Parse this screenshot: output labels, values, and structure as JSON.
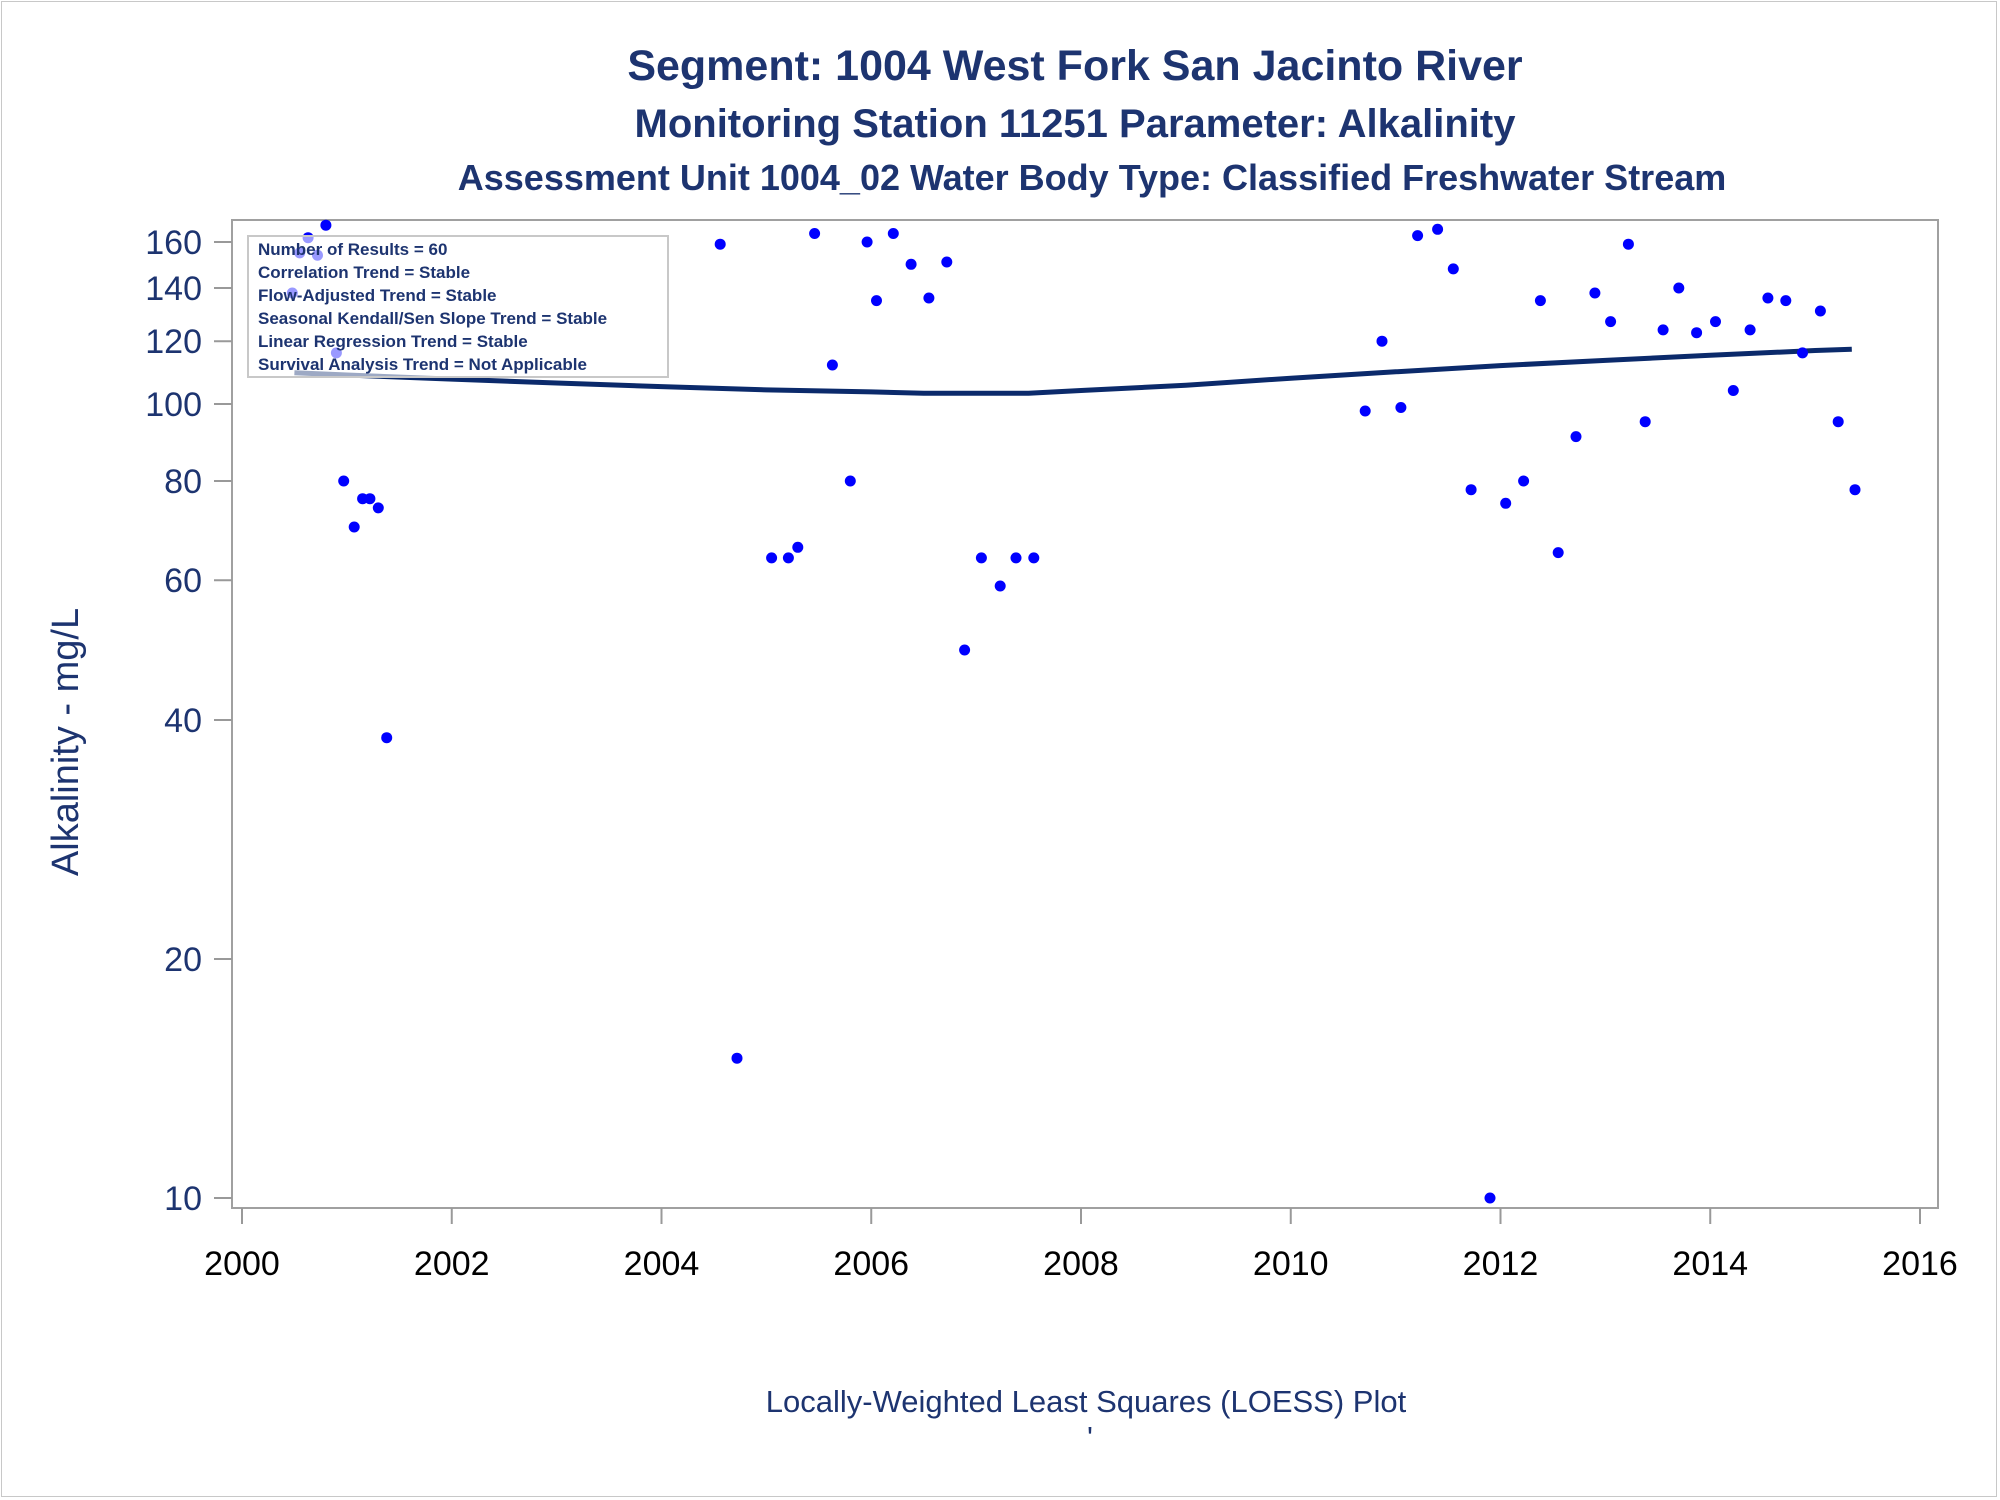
{
  "titles": {
    "line1": "Segment: 1004  West Fork San Jacinto River",
    "line2": "Monitoring Station 11251 Parameter: Alkalinity",
    "line3": "Assessment Unit 1004_02   Water Body Type: Classified Freshwater Stream"
  },
  "inset": {
    "lines": [
      "Number of Results = 60",
      "Correlation Trend = Stable",
      "Flow-Adjusted Trend = Stable",
      "Seasonal Kendall/Sen Slope Trend = Stable",
      "Linear Regression Trend = Stable",
      "Survival Analysis Trend = Not Applicable"
    ]
  },
  "footnote": "Locally-Weighted Least Squares (LOESS) Plot",
  "footnote_mark": "'",
  "colors": {
    "text": "#1d3470",
    "points": "#0000ff",
    "loess": "#0b2a6b",
    "axis": "#999999"
  },
  "chart_data": {
    "type": "scatter",
    "ylabel": "Alkalinity - mg/L",
    "xlabel": "",
    "yscale": "log",
    "xlim": [
      2000,
      2016
    ],
    "ylim": [
      9.8,
      175
    ],
    "xticks": [
      2000,
      2002,
      2004,
      2006,
      2008,
      2010,
      2012,
      2014,
      2016
    ],
    "yticks": [
      10,
      20,
      40,
      60,
      80,
      100,
      120,
      140,
      160
    ],
    "grid": false,
    "series": [
      {
        "type": "scatter",
        "points": [
          [
            2000.48,
            138
          ],
          [
            2000.55,
            155
          ],
          [
            2000.63,
            162
          ],
          [
            2000.72,
            154
          ],
          [
            2000.8,
            168
          ],
          [
            2000.9,
            116
          ],
          [
            2000.97,
            80
          ],
          [
            2001.07,
            70
          ],
          [
            2001.15,
            76
          ],
          [
            2001.22,
            76
          ],
          [
            2001.3,
            74
          ],
          [
            2001.38,
            38
          ],
          [
            2004.56,
            159
          ],
          [
            2004.72,
            15
          ],
          [
            2005.05,
            64
          ],
          [
            2005.21,
            64
          ],
          [
            2005.3,
            66
          ],
          [
            2005.46,
            164
          ],
          [
            2005.63,
            112
          ],
          [
            2005.8,
            80
          ],
          [
            2005.96,
            160
          ],
          [
            2006.05,
            135
          ],
          [
            2006.21,
            164
          ],
          [
            2006.38,
            150
          ],
          [
            2006.55,
            136
          ],
          [
            2006.72,
            151
          ],
          [
            2006.89,
            49
          ],
          [
            2007.05,
            64
          ],
          [
            2007.23,
            59
          ],
          [
            2007.38,
            64
          ],
          [
            2007.55,
            64
          ],
          [
            2010.71,
            98
          ],
          [
            2010.87,
            120
          ],
          [
            2011.05,
            99
          ],
          [
            2011.21,
            163
          ],
          [
            2011.4,
            166
          ],
          [
            2011.55,
            148
          ],
          [
            2011.72,
            78
          ],
          [
            2011.9,
            10
          ],
          [
            2012.05,
            75
          ],
          [
            2012.22,
            80
          ],
          [
            2012.38,
            135
          ],
          [
            2012.55,
            65
          ],
          [
            2012.72,
            91
          ],
          [
            2012.9,
            138
          ],
          [
            2013.05,
            127
          ],
          [
            2013.22,
            159
          ],
          [
            2013.38,
            95
          ],
          [
            2013.55,
            124
          ],
          [
            2013.7,
            140
          ],
          [
            2013.87,
            123
          ],
          [
            2014.05,
            127
          ],
          [
            2014.22,
            104
          ],
          [
            2014.38,
            124
          ],
          [
            2014.55,
            136
          ],
          [
            2014.72,
            135
          ],
          [
            2014.88,
            116
          ],
          [
            2015.05,
            131
          ],
          [
            2015.22,
            95
          ],
          [
            2015.38,
            78
          ]
        ]
      },
      {
        "type": "line",
        "points": [
          [
            2000.5,
            109.5
          ],
          [
            2001.0,
            108.8
          ],
          [
            2002.0,
            107.5
          ],
          [
            2003.0,
            106.3
          ],
          [
            2004.0,
            105.2
          ],
          [
            2005.0,
            104.2
          ],
          [
            2006.0,
            103.6
          ],
          [
            2006.5,
            103.2
          ],
          [
            2007.5,
            103.2
          ],
          [
            2008.0,
            104.0
          ],
          [
            2009.0,
            105.6
          ],
          [
            2010.0,
            107.8
          ],
          [
            2011.0,
            109.8
          ],
          [
            2012.0,
            111.8
          ],
          [
            2013.0,
            113.5
          ],
          [
            2014.0,
            115.2
          ],
          [
            2015.0,
            116.8
          ],
          [
            2015.35,
            117.2
          ]
        ]
      }
    ]
  }
}
